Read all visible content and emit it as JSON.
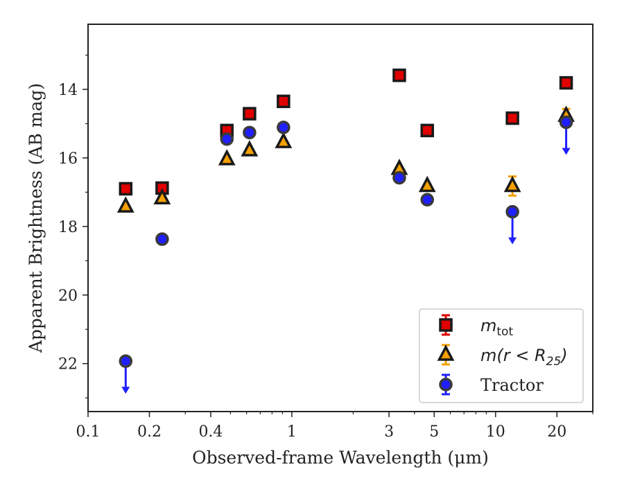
{
  "chart_data": {
    "type": "scatter",
    "title": "",
    "xlabel": "Observed-frame Wavelength (μm)",
    "ylabel": "Apparent Brightness (AB mag)",
    "x_scale": "log",
    "xlim": [
      0.1,
      30
    ],
    "ylim": [
      23.4,
      12.1
    ],
    "y_inverted": true,
    "grid": false,
    "legend_position": "lower-right",
    "xticks": [
      {
        "value": 0.1,
        "label": "0.1"
      },
      {
        "value": 0.2,
        "label": "0.2"
      },
      {
        "value": 0.4,
        "label": "0.4"
      },
      {
        "value": 1,
        "label": "1"
      },
      {
        "value": 3,
        "label": "3"
      },
      {
        "value": 5,
        "label": "5"
      },
      {
        "value": 10,
        "label": "10"
      },
      {
        "value": 20,
        "label": "20"
      }
    ],
    "yticks": [
      {
        "value": 14,
        "label": "14"
      },
      {
        "value": 16,
        "label": "16"
      },
      {
        "value": 18,
        "label": "18"
      },
      {
        "value": 20,
        "label": "20"
      },
      {
        "value": 22,
        "label": "22"
      }
    ],
    "series": [
      {
        "name": "m_tot",
        "marker": "square",
        "color": "#e00000",
        "points": [
          {
            "x": 0.153,
            "y": 16.9
          },
          {
            "x": 0.231,
            "y": 16.88
          },
          {
            "x": 0.48,
            "y": 15.2
          },
          {
            "x": 0.62,
            "y": 14.71
          },
          {
            "x": 0.91,
            "y": 14.35
          },
          {
            "x": 3.37,
            "y": 13.59
          },
          {
            "x": 4.62,
            "y": 15.2
          },
          {
            "x": 12.1,
            "y": 14.84,
            "yerr": 0.05
          },
          {
            "x": 22.2,
            "y": 13.81
          }
        ]
      },
      {
        "name": "m(r < R_25)",
        "marker": "triangle",
        "color": "#f5a000",
        "points": [
          {
            "x": 0.153,
            "y": 17.42
          },
          {
            "x": 0.231,
            "y": 17.18
          },
          {
            "x": 0.48,
            "y": 16.04
          },
          {
            "x": 0.62,
            "y": 15.78
          },
          {
            "x": 0.91,
            "y": 15.54
          },
          {
            "x": 3.37,
            "y": 16.32
          },
          {
            "x": 4.62,
            "y": 16.82
          },
          {
            "x": 12.1,
            "y": 16.82,
            "yerr": 0.28
          },
          {
            "x": 22.2,
            "y": 14.77,
            "yerr": 0.2
          }
        ]
      },
      {
        "name": "Tractor",
        "marker": "circle",
        "color": "#1f1fff",
        "points": [
          {
            "x": 0.153,
            "y": 21.93,
            "upper_limit": true
          },
          {
            "x": 0.231,
            "y": 18.37
          },
          {
            "x": 0.48,
            "y": 15.45
          },
          {
            "x": 0.62,
            "y": 15.26
          },
          {
            "x": 0.91,
            "y": 15.11
          },
          {
            "x": 3.37,
            "y": 16.58
          },
          {
            "x": 4.62,
            "y": 17.22
          },
          {
            "x": 12.1,
            "y": 17.57,
            "upper_limit": true
          },
          {
            "x": 22.2,
            "y": 14.96,
            "upper_limit": true
          }
        ]
      }
    ],
    "legend": [
      {
        "label_base": "m",
        "label_sub": "tot",
        "label_rest": "",
        "series": 0
      },
      {
        "label_base": "m(r < R",
        "label_sub": "25",
        "label_rest": ")",
        "series": 1
      },
      {
        "label_base": "Tractor",
        "label_sub": "",
        "label_rest": "",
        "series": 2
      }
    ]
  }
}
